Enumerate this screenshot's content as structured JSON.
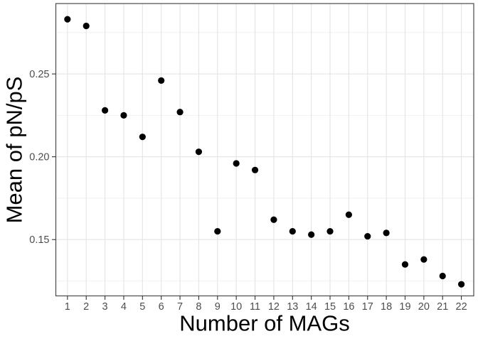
{
  "figure": {
    "background_color": "#ffffff"
  },
  "chart_data": {
    "type": "scatter",
    "title": "",
    "xlabel": "Number of MAGs",
    "ylabel": "Mean of pN/pS",
    "x": [
      1,
      2,
      3,
      4,
      5,
      6,
      7,
      8,
      9,
      10,
      11,
      12,
      13,
      14,
      15,
      16,
      17,
      18,
      19,
      20,
      21,
      22
    ],
    "y": [
      0.283,
      0.279,
      0.228,
      0.225,
      0.212,
      0.246,
      0.227,
      0.203,
      0.155,
      0.196,
      0.192,
      0.162,
      0.155,
      0.153,
      0.155,
      0.165,
      0.152,
      0.154,
      0.135,
      0.138,
      0.128,
      0.123
    ],
    "xlim": [
      0.38,
      22.66
    ],
    "ylim": [
      0.116,
      0.2925
    ],
    "x_ticks": [
      1,
      2,
      3,
      4,
      5,
      6,
      7,
      8,
      9,
      10,
      11,
      12,
      13,
      14,
      15,
      16,
      17,
      18,
      19,
      20,
      21,
      22
    ],
    "x_tick_labels": [
      "1",
      "2",
      "3",
      "4",
      "5",
      "6",
      "7",
      "8",
      "9",
      "10",
      "11",
      "12",
      "13",
      "14",
      "15",
      "16",
      "17",
      "18",
      "19",
      "20",
      "21",
      "22"
    ],
    "y_ticks": [
      0.15,
      0.2,
      0.25
    ],
    "y_tick_labels": [
      "0.15",
      "0.20",
      "0.25"
    ],
    "y_minor_gridlines": [
      0.125,
      0.175,
      0.225,
      0.275
    ],
    "grid": "on",
    "legend_position": "none",
    "point_color": "#000000",
    "panel_background": "#ffffff",
    "panel_border_color": "#4a4a4a",
    "grid_major_color": "#e4e4e4",
    "grid_minor_color": "#efefef",
    "tick_mark_color": "#333333",
    "tick_label_color": "#4d4d4d",
    "axis_title_color": "#000000"
  }
}
